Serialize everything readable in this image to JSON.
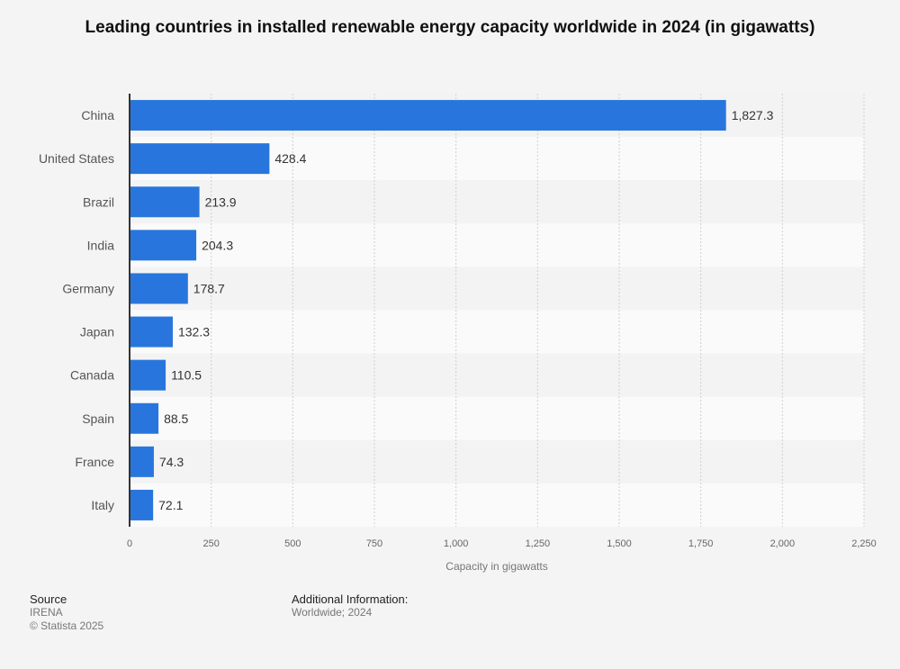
{
  "chart_data": {
    "type": "bar",
    "orientation": "horizontal",
    "title": "Leading countries in installed renewable energy capacity worldwide in 2024 (in gigawatts)",
    "categories": [
      "China",
      "United States",
      "Brazil",
      "India",
      "Germany",
      "Japan",
      "Canada",
      "Spain",
      "France",
      "Italy"
    ],
    "values": [
      1827.3,
      428.4,
      213.9,
      204.3,
      178.7,
      132.3,
      110.5,
      88.5,
      74.3,
      72.1
    ],
    "value_labels": [
      "1,827.3",
      "428.4",
      "213.9",
      "204.3",
      "178.7",
      "132.3",
      "110.5",
      "88.5",
      "74.3",
      "72.1"
    ],
    "xlabel": "Capacity in gigawatts",
    "ylabel": "",
    "xlim": [
      0,
      2250
    ],
    "xticks": [
      0,
      250,
      500,
      750,
      1000,
      1250,
      1500,
      1750,
      2000,
      2250
    ],
    "xtick_labels": [
      "0",
      "250",
      "500",
      "750",
      "1,000",
      "1,250",
      "1,500",
      "1,750",
      "2,000",
      "2,250"
    ],
    "grid": true,
    "bar_color": "#2876dd"
  },
  "footer": {
    "source_heading": "Source",
    "source": "IRENA",
    "copyright": "© Statista 2025",
    "additional_heading": "Additional Information:",
    "additional": "Worldwide; 2024"
  }
}
